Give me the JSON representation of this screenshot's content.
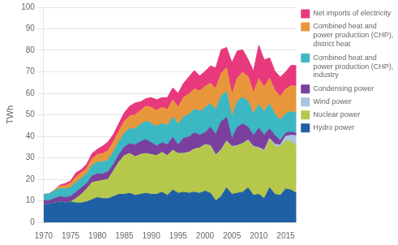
{
  "chart_data": {
    "type": "area",
    "stacked": true,
    "ylabel": "TWh",
    "x": [
      1970,
      1971,
      1972,
      1973,
      1974,
      1975,
      1976,
      1977,
      1978,
      1979,
      1980,
      1981,
      1982,
      1983,
      1984,
      1985,
      1986,
      1987,
      1988,
      1989,
      1990,
      1991,
      1992,
      1993,
      1994,
      1995,
      1996,
      1997,
      1998,
      1999,
      2000,
      2001,
      2002,
      2003,
      2004,
      2005,
      2006,
      2007,
      2008,
      2009,
      2010,
      2011,
      2012,
      2013,
      2014,
      2015,
      2016,
      2017
    ],
    "series": [
      {
        "name": "Hydro power",
        "color": "#1F5FA6",
        "values": [
          8.0,
          8.5,
          9.0,
          9.5,
          9.0,
          9.5,
          9.0,
          9.0,
          9.5,
          10.5,
          11.5,
          11.0,
          11.0,
          12.0,
          13.0,
          13.0,
          13.5,
          12.5,
          13.0,
          13.5,
          13.0,
          13.0,
          14.0,
          12.5,
          15.0,
          13.5,
          14.0,
          13.5,
          14.0,
          13.5,
          14.5,
          13.5,
          10.0,
          12.0,
          16.0,
          13.0,
          13.5,
          14.0,
          16.0,
          12.5,
          13.0,
          11.0,
          16.0,
          13.0,
          12.5,
          15.5,
          15.0,
          13.5
        ]
      },
      {
        "name": "Nuclear power",
        "color": "#B5C84B",
        "values": [
          0,
          0,
          0,
          0,
          0,
          0,
          2.0,
          4.0,
          6.0,
          8.0,
          7.5,
          8.5,
          9.0,
          12.0,
          15.0,
          18.0,
          18.5,
          18.0,
          18.5,
          18.5,
          18.5,
          18.0,
          18.5,
          18.5,
          18.5,
          18.5,
          18.0,
          19.0,
          20.0,
          21.0,
          21.5,
          22.0,
          21.0,
          21.5,
          21.5,
          22.0,
          22.0,
          22.5,
          22.0,
          22.5,
          21.5,
          22.0,
          22.5,
          22.5,
          22.5,
          22.5,
          22.5,
          22.0
        ]
      },
      {
        "name": "Wind power",
        "color": "#A8C4E0",
        "values": [
          0,
          0,
          0,
          0,
          0,
          0,
          0,
          0,
          0,
          0,
          0,
          0,
          0,
          0,
          0,
          0,
          0,
          0,
          0,
          0,
          0,
          0,
          0,
          0,
          0,
          0,
          0.1,
          0.1,
          0.1,
          0.1,
          0.2,
          0.2,
          0.3,
          0.3,
          0.3,
          0.3,
          0.2,
          0.2,
          0.3,
          0.3,
          0.3,
          0.5,
          0.5,
          0.8,
          1.0,
          2.0,
          3.0,
          4.8
        ]
      },
      {
        "name": "Condensing power",
        "color": "#7B3F9E",
        "values": [
          2.0,
          1.5,
          2.0,
          2.5,
          2.5,
          2.5,
          3.0,
          3.0,
          2.5,
          3.0,
          3.5,
          3.0,
          3.5,
          3.0,
          3.5,
          4.0,
          4.5,
          5.5,
          6.0,
          6.5,
          5.5,
          4.5,
          4.5,
          5.0,
          6.0,
          4.0,
          7.0,
          7.0,
          7.5,
          6.0,
          5.5,
          8.5,
          9.5,
          13.0,
          11.0,
          3.5,
          8.5,
          9.0,
          6.0,
          5.0,
          9.0,
          7.0,
          4.5,
          4.0,
          2.0,
          1.5,
          1.5,
          1.0
        ]
      },
      {
        "name": "Combined heat and\npower production (CHP),\nindustry",
        "color": "#3BB8C3",
        "values": [
          3.0,
          3.2,
          3.5,
          3.8,
          4.0,
          4.2,
          4.5,
          4.5,
          4.5,
          5.0,
          5.5,
          5.5,
          5.5,
          6.0,
          6.0,
          6.5,
          7.0,
          7.5,
          8.0,
          8.5,
          9.0,
          9.0,
          9.0,
          9.0,
          9.5,
          9.5,
          10.0,
          10.5,
          11.0,
          11.0,
          11.5,
          11.0,
          11.5,
          12.0,
          12.0,
          10.0,
          12.0,
          12.5,
          12.0,
          10.0,
          11.0,
          11.0,
          11.5,
          10.0,
          9.5,
          9.0,
          9.5,
          9.5
        ]
      },
      {
        "name": "Combined heat and\npower production (CHP),\ndistrict heat",
        "color": "#E8963C",
        "values": [
          0,
          0,
          0.5,
          1.0,
          1.5,
          2.0,
          2.5,
          2.5,
          2.5,
          3.0,
          3.5,
          4.0,
          4.5,
          4.5,
          5.0,
          5.5,
          6.0,
          6.5,
          6.5,
          7.0,
          7.5,
          7.5,
          7.5,
          7.5,
          8.0,
          8.0,
          9.0,
          9.5,
          9.5,
          9.5,
          10.0,
          9.5,
          10.0,
          10.5,
          11.0,
          10.5,
          11.0,
          11.5,
          11.5,
          10.0,
          12.0,
          11.5,
          12.0,
          11.0,
          11.0,
          11.5,
          12.0,
          12.5
        ]
      },
      {
        "name": "Net imports of electricity",
        "color": "#E8397D",
        "values": [
          0.0,
          0.0,
          0.0,
          0.5,
          1.0,
          1.0,
          2.0,
          1.5,
          2.0,
          2.5,
          2.5,
          3.5,
          4.0,
          3.5,
          3.5,
          4.0,
          4.5,
          5.5,
          4.0,
          3.5,
          4.5,
          5.0,
          4.5,
          5.5,
          5.5,
          6.5,
          6.5,
          8.0,
          8.5,
          7.0,
          7.0,
          8.0,
          9.5,
          11.0,
          9.5,
          15.0,
          12.5,
          10.5,
          8.0,
          10.0,
          15.5,
          12.5,
          9.5,
          9.0,
          9.0,
          8.0,
          9.5,
          9.5
        ]
      }
    ],
    "xlim": [
      1970,
      2017
    ],
    "ylim": [
      0,
      100
    ],
    "xticks": [
      1970,
      1975,
      1980,
      1985,
      1990,
      1995,
      2000,
      2005,
      2010,
      2015
    ],
    "yticks": [
      0,
      10,
      20,
      30,
      40,
      50,
      60,
      70,
      80,
      90,
      100
    ],
    "grid": "y",
    "legend": "right"
  }
}
